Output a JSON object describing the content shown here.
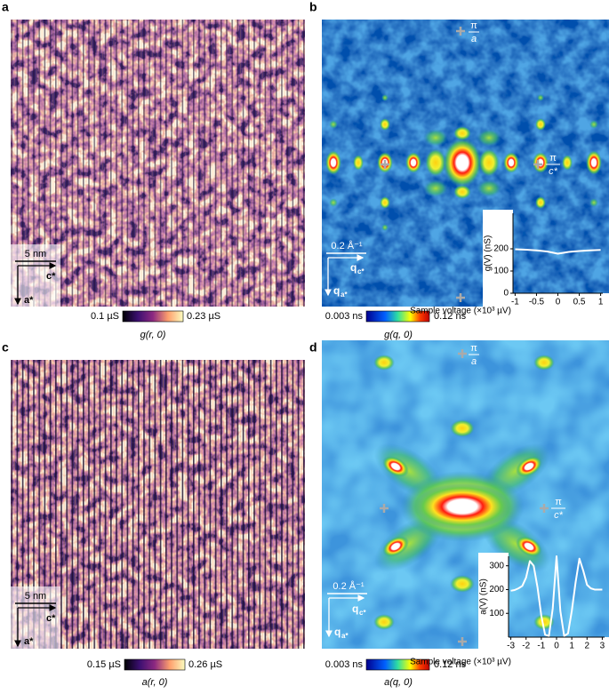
{
  "panels": [
    {
      "label": "a",
      "scale_bar": "5 nm",
      "axis_x": "c*",
      "axis_y": "a*",
      "colorbar": {
        "min": "0.1 µS",
        "max": "0.23 µS",
        "quantity": "g(r, 0)"
      }
    },
    {
      "label": "b",
      "marker_a": {
        "num": "π",
        "den": "a"
      },
      "marker_c": {
        "num": "π",
        "den": "c*"
      },
      "scale_bar": "0.2 Å⁻¹",
      "axis_x": {
        "main": "q",
        "sub": "c*"
      },
      "axis_y": {
        "main": "q",
        "sub": "a*"
      },
      "colorbar": {
        "min": "0.003 ns",
        "max": "0.12 ns",
        "quantity": "g(q, 0)"
      }
    },
    {
      "label": "c",
      "scale_bar": "5 nm",
      "axis_x": "c*",
      "axis_y": "a*",
      "colorbar": {
        "min": "0.15 µS",
        "max": "0.26 µS",
        "quantity": "a(r, 0)"
      }
    },
    {
      "label": "d",
      "marker_a": {
        "num": "π",
        "den": "a"
      },
      "marker_c": {
        "num": "π",
        "den": "c*"
      },
      "scale_bar": "0.2 Å⁻¹",
      "axis_x": {
        "main": "q",
        "sub": "c*"
      },
      "axis_y": {
        "main": "q",
        "sub": "a*"
      },
      "colorbar": {
        "min": "0.003 ns",
        "max": "0.12 ns",
        "quantity": "a(q, 0)"
      }
    }
  ],
  "chart_data": [
    {
      "type": "line",
      "xlabel": "Sample voltage (×10³ µV)",
      "ylabel": "g(V) (nS)",
      "color": "#ffffff",
      "x": [
        -1,
        -0.75,
        -0.5,
        -0.25,
        0,
        0.25,
        0.5,
        0.75,
        1
      ],
      "values": [
        198,
        196,
        193,
        188,
        178,
        186,
        190,
        193,
        195
      ],
      "xlim": [
        -1.05,
        1.05
      ],
      "ylim": [
        0,
        360
      ],
      "xticks": [
        -1,
        -0.5,
        0,
        0.5,
        1
      ],
      "yticks": [
        0,
        100,
        200
      ]
    },
    {
      "type": "line",
      "xlabel": "Sample voltage (×10³ µV)",
      "ylabel": "a(V) (nS)",
      "color": "#ffffff",
      "x": [
        -3,
        -2.75,
        -2.5,
        -2.25,
        -2,
        -1.75,
        -1.5,
        -1.25,
        -1,
        -0.75,
        -0.5,
        -0.25,
        0,
        0.25,
        0.5,
        0.75,
        1,
        1.25,
        1.5,
        1.75,
        2,
        2.25,
        2.5,
        2.75,
        3
      ],
      "values": [
        195,
        198,
        205,
        215,
        250,
        320,
        300,
        210,
        90,
        10,
        5,
        120,
        340,
        110,
        5,
        15,
        110,
        230,
        330,
        280,
        220,
        205,
        200,
        200,
        200
      ],
      "xlim": [
        -3.15,
        3.15
      ],
      "ylim": [
        0,
        340
      ],
      "xticks": [
        -3,
        -2,
        -1,
        0,
        1,
        2,
        3
      ],
      "yticks": [
        100,
        200,
        300
      ]
    }
  ]
}
